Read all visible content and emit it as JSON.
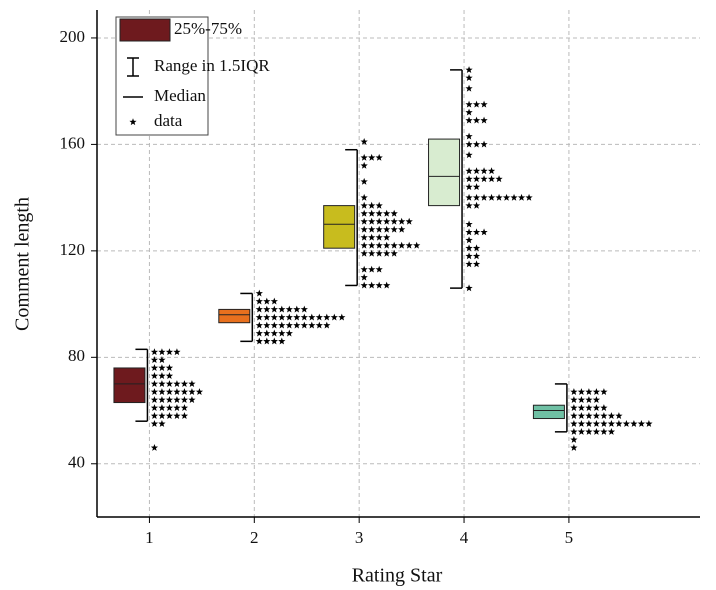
{
  "chart_data": {
    "type": "box",
    "xlabel": "Rating Star",
    "ylabel": "Comment length",
    "xlim": [
      0.5,
      6.25
    ],
    "ylim": [
      20,
      210.5
    ],
    "xticks": [
      1,
      2,
      3,
      4,
      5
    ],
    "yticks": [
      40,
      80,
      120,
      160,
      200
    ],
    "grid": true,
    "legend_position": "upper left",
    "legend": [
      "25%-75%",
      "Range in 1.5IQR",
      "Median",
      "data"
    ],
    "boxes": [
      {
        "x": 1,
        "color": "#6e1a1e",
        "q1": 63,
        "median": 70,
        "q3": 76,
        "whisker_low": 56,
        "whisker_high": 83,
        "dots": [
          {
            "y": 82,
            "n": 4
          },
          {
            "y": 79,
            "n": 2
          },
          {
            "y": 76,
            "n": 3
          },
          {
            "y": 73,
            "n": 3
          },
          {
            "y": 70,
            "n": 6
          },
          {
            "y": 67,
            "n": 7
          },
          {
            "y": 64,
            "n": 6
          },
          {
            "y": 61,
            "n": 5
          },
          {
            "y": 58,
            "n": 5
          },
          {
            "y": 55,
            "n": 2
          },
          {
            "y": 46,
            "n": 1
          }
        ]
      },
      {
        "x": 2,
        "color": "#e8701e",
        "q1": 93,
        "median": 96,
        "q3": 98,
        "whisker_low": 86,
        "whisker_high": 104,
        "dots": [
          {
            "y": 104,
            "n": 1
          },
          {
            "y": 101,
            "n": 3
          },
          {
            "y": 98,
            "n": 7
          },
          {
            "y": 95,
            "n": 12
          },
          {
            "y": 92,
            "n": 10
          },
          {
            "y": 89,
            "n": 5
          },
          {
            "y": 86,
            "n": 4
          }
        ]
      },
      {
        "x": 3,
        "color": "#c8bc1e",
        "q1": 121,
        "median": 130,
        "q3": 137,
        "whisker_low": 107,
        "whisker_high": 158,
        "dots": [
          {
            "y": 161,
            "n": 1
          },
          {
            "y": 155,
            "n": 3
          },
          {
            "y": 152,
            "n": 1
          },
          {
            "y": 146,
            "n": 1
          },
          {
            "y": 140,
            "n": 1
          },
          {
            "y": 137,
            "n": 3
          },
          {
            "y": 134,
            "n": 5
          },
          {
            "y": 131,
            "n": 7
          },
          {
            "y": 128,
            "n": 6
          },
          {
            "y": 125,
            "n": 4
          },
          {
            "y": 122,
            "n": 8
          },
          {
            "y": 119,
            "n": 5
          },
          {
            "y": 113,
            "n": 3
          },
          {
            "y": 110,
            "n": 1
          },
          {
            "y": 107,
            "n": 4
          }
        ]
      },
      {
        "x": 4,
        "color": "#d8ecd0",
        "q1": 137,
        "median": 148,
        "q3": 162,
        "whisker_low": 106,
        "whisker_high": 188,
        "dots": [
          {
            "y": 188,
            "n": 1
          },
          {
            "y": 185,
            "n": 1
          },
          {
            "y": 181,
            "n": 1
          },
          {
            "y": 175,
            "n": 3
          },
          {
            "y": 172,
            "n": 1
          },
          {
            "y": 169,
            "n": 3
          },
          {
            "y": 163,
            "n": 1
          },
          {
            "y": 160,
            "n": 3
          },
          {
            "y": 156,
            "n": 1
          },
          {
            "y": 150,
            "n": 4
          },
          {
            "y": 147,
            "n": 5
          },
          {
            "y": 144,
            "n": 2
          },
          {
            "y": 140,
            "n": 9
          },
          {
            "y": 137,
            "n": 2
          },
          {
            "y": 130,
            "n": 1
          },
          {
            "y": 127,
            "n": 3
          },
          {
            "y": 124,
            "n": 1
          },
          {
            "y": 121,
            "n": 2
          },
          {
            "y": 118,
            "n": 2
          },
          {
            "y": 115,
            "n": 2
          },
          {
            "y": 106,
            "n": 1
          }
        ]
      },
      {
        "x": 5,
        "color": "#6fc0a4",
        "q1": 57,
        "median": 60,
        "q3": 62,
        "whisker_low": 52,
        "whisker_high": 70,
        "dots": [
          {
            "y": 67,
            "n": 5
          },
          {
            "y": 64,
            "n": 4
          },
          {
            "y": 61,
            "n": 5
          },
          {
            "y": 58,
            "n": 7
          },
          {
            "y": 55,
            "n": 11
          },
          {
            "y": 52,
            "n": 6
          },
          {
            "y": 49,
            "n": 1
          },
          {
            "y": 46,
            "n": 1
          }
        ]
      }
    ]
  }
}
